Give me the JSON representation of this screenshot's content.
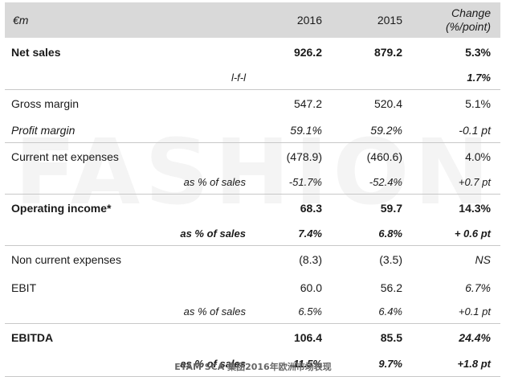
{
  "header": {
    "label": "€m",
    "year1": "2016",
    "year2": "2015",
    "change": "Change",
    "change_unit": "(%/point)"
  },
  "rows": [
    {
      "label": "Net sales",
      "v2016": "926.2",
      "v2015": "879.2",
      "change": "5.3%"
    },
    {
      "label": "l-f-l",
      "v2016": "",
      "v2015": "",
      "change": "1.7%"
    },
    {
      "label": "Gross margin",
      "v2016": "547.2",
      "v2015": "520.4",
      "change": "5.1%"
    },
    {
      "label": "Profit margin",
      "v2016": "59.1%",
      "v2015": "59.2%",
      "change": "-0.1 pt"
    },
    {
      "label": "Current net expenses",
      "v2016": "(478.9)",
      "v2015": "(460.6)",
      "change": "4.0%"
    },
    {
      "label": "as % of sales",
      "v2016": "-51.7%",
      "v2015": "-52.4%",
      "change": "+0.7 pt"
    },
    {
      "label": "Operating income*",
      "v2016": "68.3",
      "v2015": "59.7",
      "change": "14.3%"
    },
    {
      "label": "as % of sales",
      "v2016": "7.4%",
      "v2015": "6.8%",
      "change": "+ 0.6 pt"
    },
    {
      "label": "Non current expenses",
      "v2016": "(8.3)",
      "v2015": "(3.5)",
      "change": "NS"
    },
    {
      "label": "EBIT",
      "v2016": "60.0",
      "v2015": "56.2",
      "change": "6.7%"
    },
    {
      "label": "as % of sales",
      "v2016": "6.5%",
      "v2015": "6.4%",
      "change": "+0.1 pt"
    },
    {
      "label": "EBITDA",
      "v2016": "106.4",
      "v2015": "85.5",
      "change": "24.4%"
    },
    {
      "label": "as % of sales",
      "v2016": "11.5%",
      "v2015": "9.7%",
      "change": "+1.8 pt"
    }
  ],
  "watermark": "FASHION",
  "caption": "ETAM SCA 集团2016年欧洲市场表现"
}
